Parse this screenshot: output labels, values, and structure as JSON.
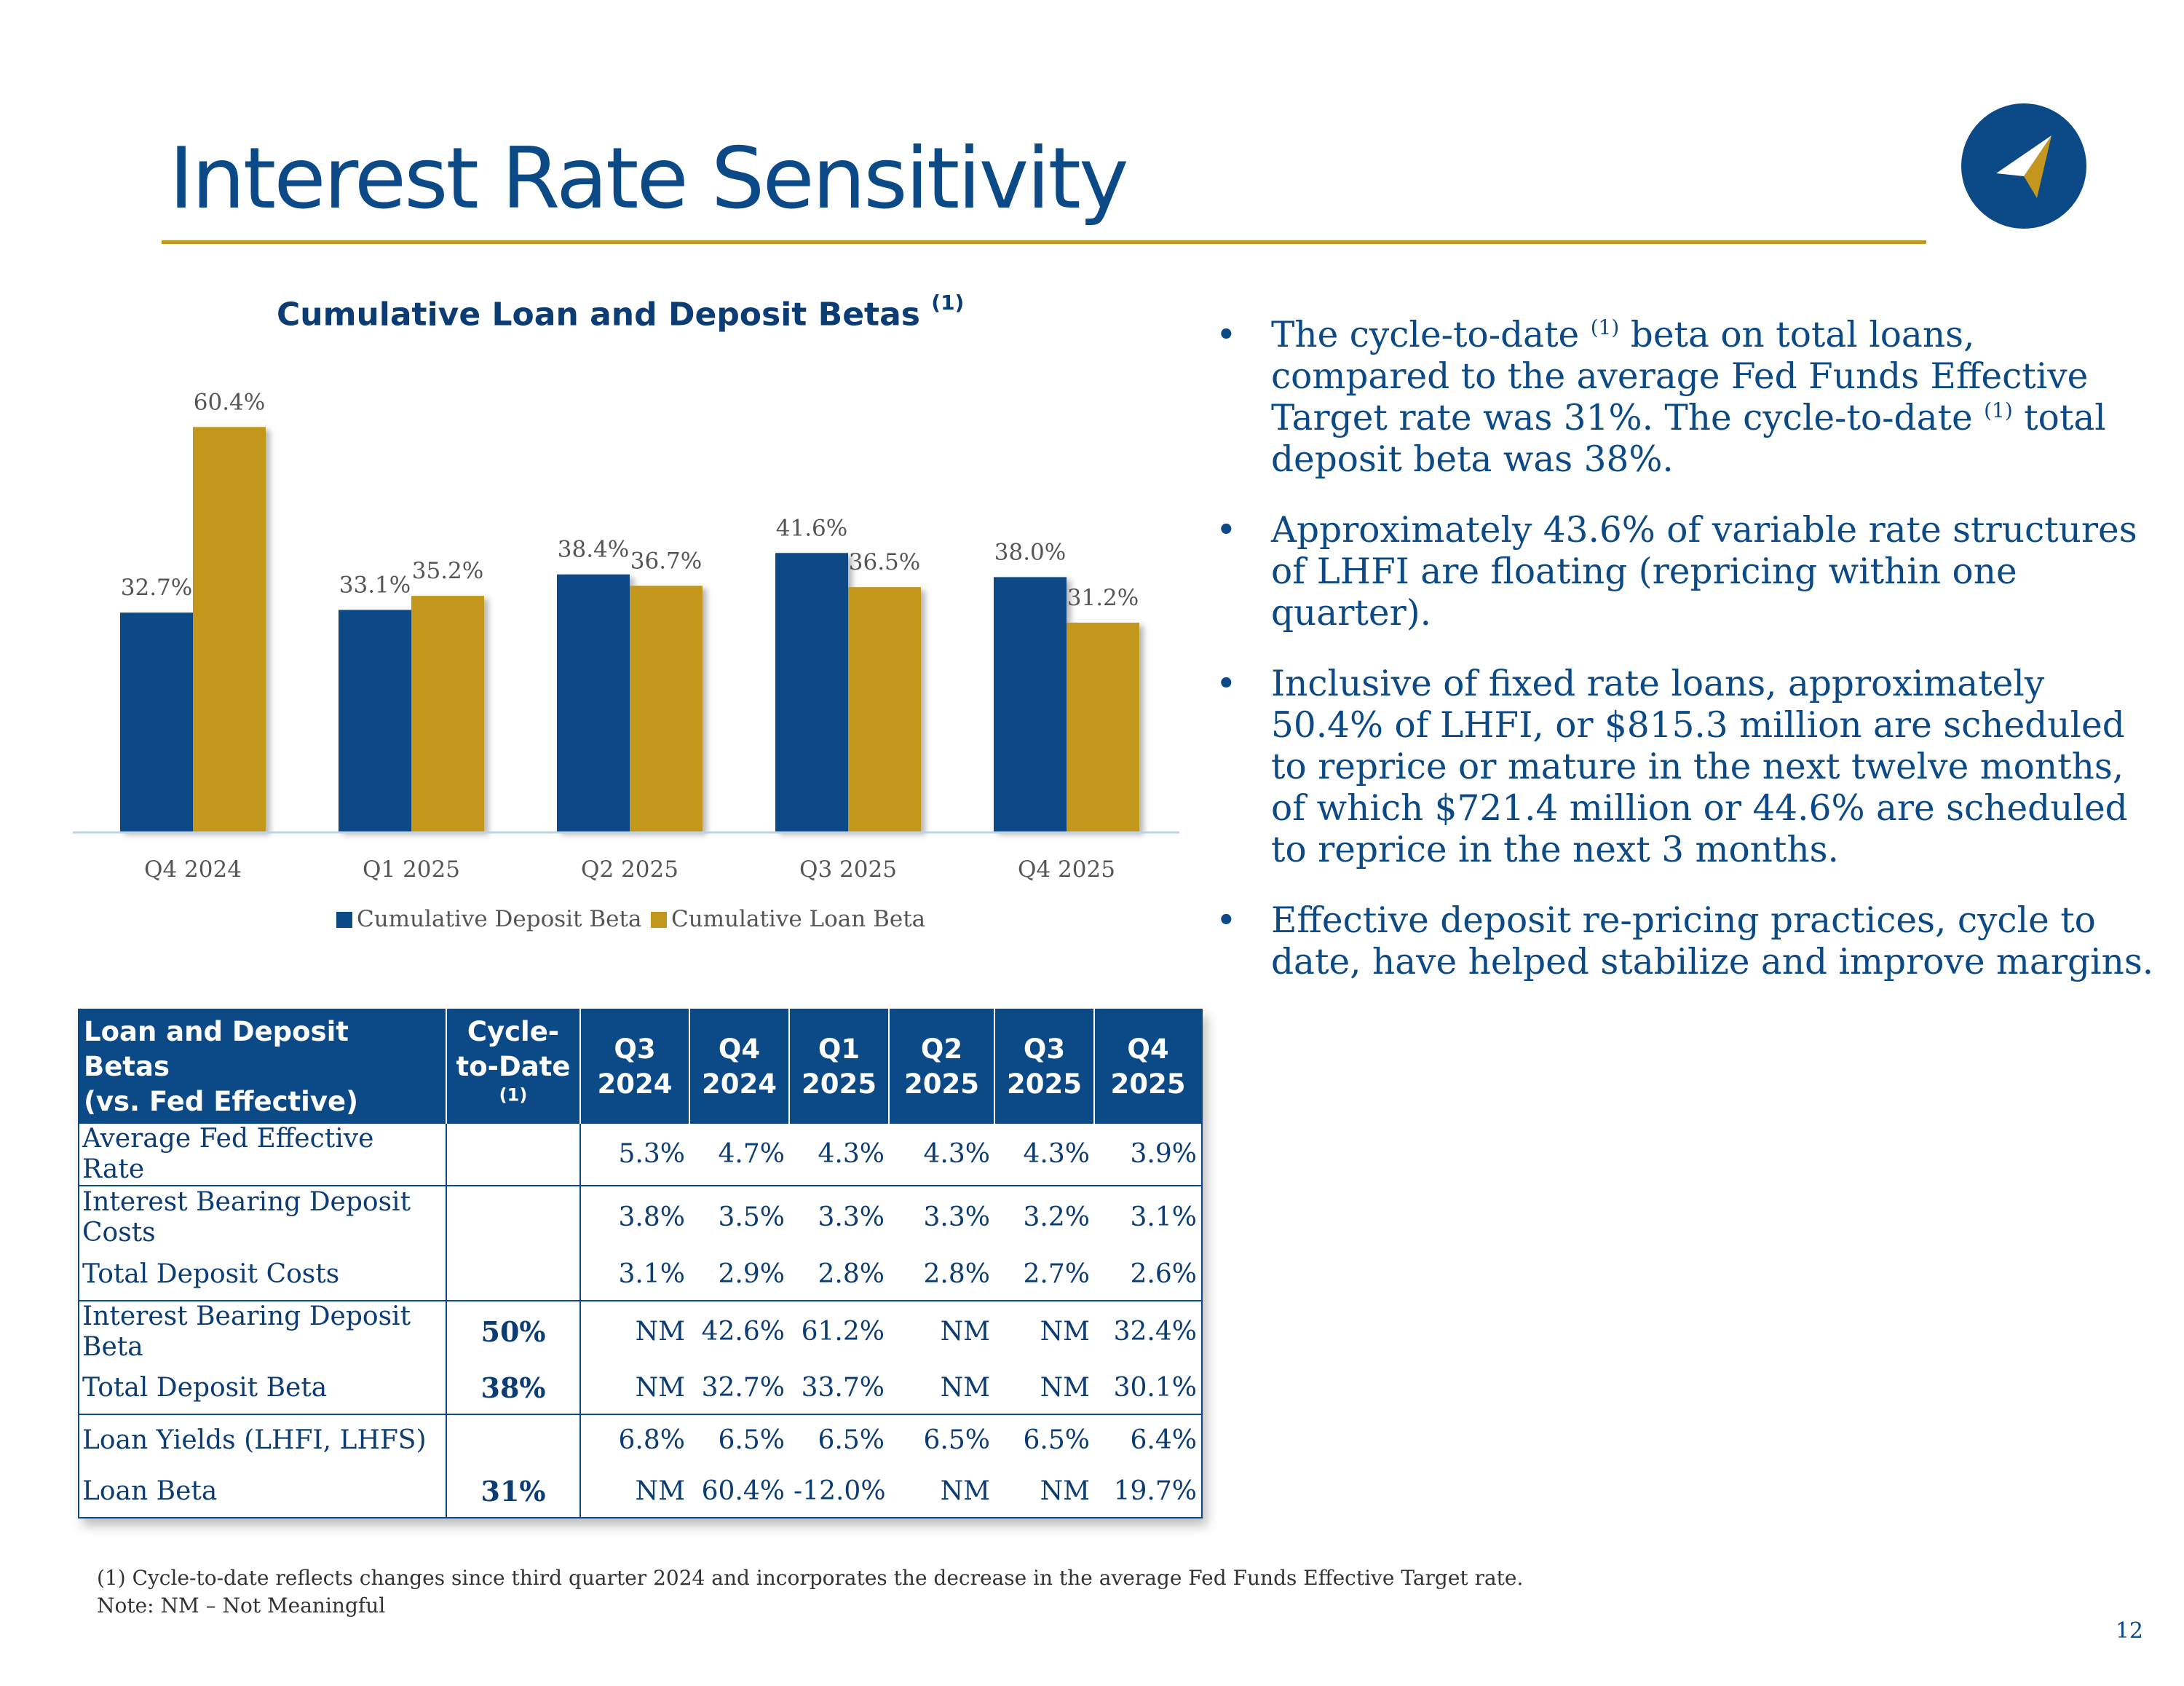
{
  "page": {
    "title": "Interest Rate Sensitivity",
    "page_number": "12"
  },
  "colors": {
    "navy": "#0b4a86",
    "gold": "#c3961e"
  },
  "chart_data": {
    "type": "bar",
    "title": "Cumulative Loan and Deposit Betas",
    "title_superscript": "(1)",
    "categories": [
      "Q4 2024",
      "Q1 2025",
      "Q2 2025",
      "Q3 2025",
      "Q4 2025"
    ],
    "series": [
      {
        "name": "Cumulative Deposit Beta",
        "values": [
          32.7,
          33.1,
          38.4,
          41.6,
          38.0
        ],
        "labels": [
          "32.7%",
          "33.1%",
          "38.4%",
          "41.6%",
          "38.0%"
        ],
        "color": "#0b4a86"
      },
      {
        "name": "Cumulative Loan Beta",
        "values": [
          60.4,
          35.2,
          36.7,
          36.5,
          31.2
        ],
        "labels": [
          "60.4%",
          "35.2%",
          "36.7%",
          "36.5%",
          "31.2%"
        ],
        "color": "#c3961e"
      }
    ],
    "ylim": [
      0,
      65
    ],
    "grid": false,
    "legend": "bottom"
  },
  "bullets": [
    {
      "parts": [
        "The cycle-to-date ",
        "(1)",
        " beta on total loans, compared to the average Fed Funds Effective Target rate was 31%.  The cycle-to-date ",
        "(1)",
        " total deposit beta was 38%."
      ]
    },
    {
      "text": "Approximately 43.6% of variable rate structures of LHFI are floating (repricing within one quarter)."
    },
    {
      "text": "Inclusive of fixed rate loans, approximately 50.4% of LHFI, or $815.3 million are scheduled to reprice or mature in the next twelve months, of which $721.4 million or 44.6% are scheduled to reprice in the next 3 months."
    },
    {
      "text": "Effective deposit re-pricing practices, cycle to date, have helped stabilize and improve margins."
    }
  ],
  "bullet_symbol": "•",
  "table": {
    "header": {
      "label_line1": "Loan and Deposit Betas",
      "label_line2": "(vs. Fed Effective)",
      "ctd_line1": "Cycle-",
      "ctd_line2": "to-Date",
      "ctd_sup": "(1)",
      "quarters": [
        [
          "Q3",
          "2024"
        ],
        [
          "Q4",
          "2024"
        ],
        [
          "Q1",
          "2025"
        ],
        [
          "Q2",
          "2025"
        ],
        [
          "Q3",
          "2025"
        ],
        [
          "Q4",
          "2025"
        ]
      ]
    },
    "rows": [
      {
        "label": "Average Fed Effective Rate",
        "ctd": "",
        "values": [
          "5.3%",
          "4.7%",
          "4.3%",
          "4.3%",
          "4.3%",
          "3.9%"
        ]
      },
      {
        "label": "Interest Bearing Deposit Costs",
        "ctd": "",
        "values": [
          "3.8%",
          "3.5%",
          "3.3%",
          "3.3%",
          "3.2%",
          "3.1%"
        ]
      },
      {
        "label": "Total Deposit Costs",
        "ctd": "",
        "values": [
          "3.1%",
          "2.9%",
          "2.8%",
          "2.8%",
          "2.7%",
          "2.6%"
        ]
      },
      {
        "label": "Interest Bearing Deposit Beta",
        "ctd": "50%",
        "values": [
          "NM",
          "42.6%",
          "61.2%",
          "NM",
          "NM",
          "32.4%"
        ]
      },
      {
        "label": "Total Deposit Beta",
        "ctd": "38%",
        "values": [
          "NM",
          "32.7%",
          "33.7%",
          "NM",
          "NM",
          "30.1%"
        ]
      },
      {
        "label": "Loan Yields (LHFI, LHFS)",
        "ctd": "",
        "values": [
          "6.8%",
          "6.5%",
          "6.5%",
          "6.5%",
          "6.5%",
          "6.4%"
        ]
      },
      {
        "label": "Loan Beta",
        "ctd": "31%",
        "values": [
          "NM",
          "60.4%",
          "-12.0%",
          "NM",
          "NM",
          "19.7%"
        ]
      }
    ]
  },
  "footnotes": {
    "line1": "(1) Cycle-to-date reflects changes since third quarter 2024 and incorporates the decrease in the average Fed Funds Effective Target rate.",
    "line2": "Note: NM – Not Meaningful"
  }
}
